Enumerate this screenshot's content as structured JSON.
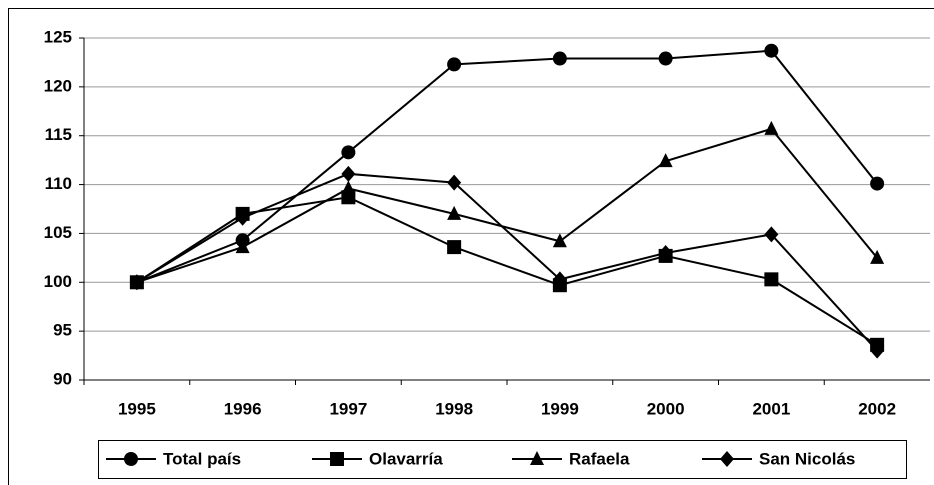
{
  "chart_data": {
    "type": "line",
    "categories": [
      "1995",
      "1996",
      "1997",
      "1998",
      "1999",
      "2000",
      "2001",
      "2002"
    ],
    "series": [
      {
        "name": "Total país",
        "color": "#000000",
        "marker": "circle",
        "values": [
          100,
          104.3,
          113.3,
          122.3,
          122.9,
          122.9,
          123.7,
          110.1
        ]
      },
      {
        "name": "Olavarría",
        "color": "#000000",
        "marker": "square",
        "values": [
          100,
          107,
          108.7,
          103.6,
          99.7,
          102.7,
          100.3,
          93.6
        ]
      },
      {
        "name": "Rafaela",
        "color": "#000000",
        "marker": "triangle",
        "values": [
          100,
          103.6,
          109.6,
          107,
          104.2,
          112.4,
          115.7,
          102.5
        ]
      },
      {
        "name": "San Nicolás",
        "color": "#000000",
        "marker": "diamond",
        "values": [
          100,
          106.6,
          111.1,
          110.2,
          100.3,
          103,
          104.9,
          93
        ]
      }
    ],
    "ylim": [
      90,
      125
    ],
    "yticks": [
      90,
      95,
      100,
      105,
      110,
      115,
      120,
      125
    ],
    "grid": true,
    "legend": "bottom"
  }
}
